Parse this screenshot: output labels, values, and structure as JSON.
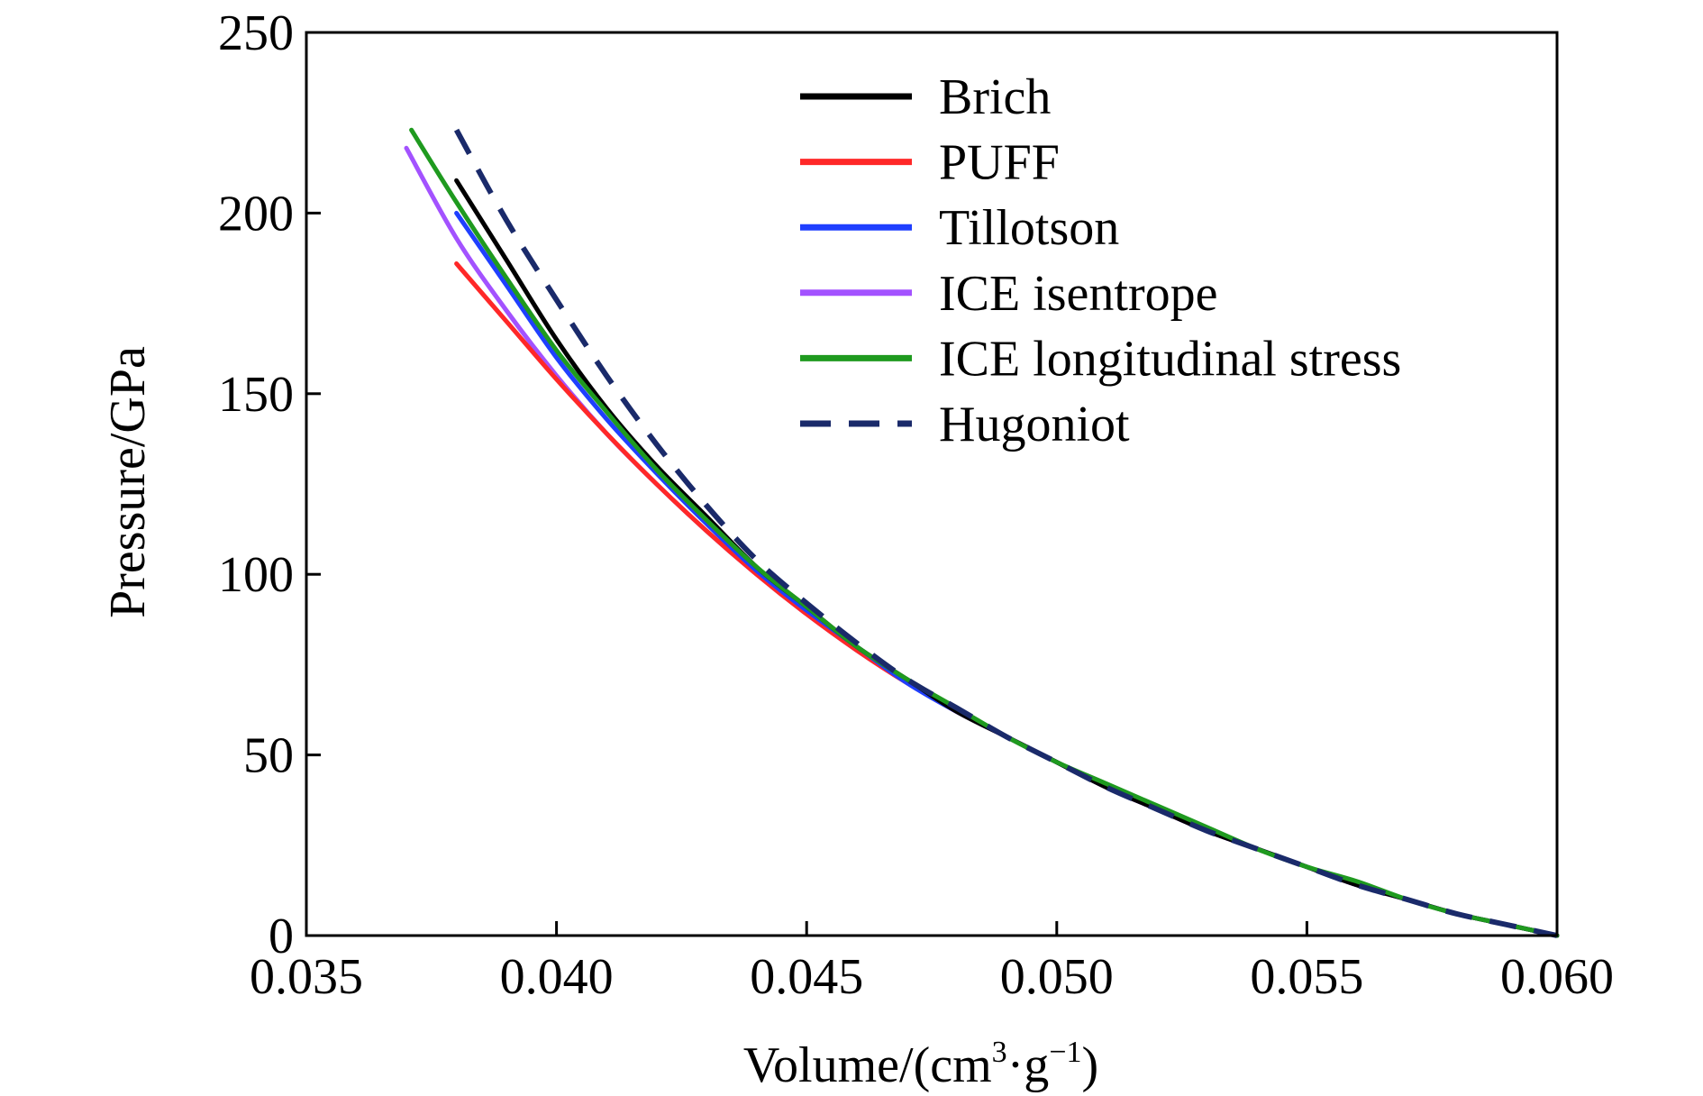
{
  "chart_data": {
    "type": "line",
    "xlabel": {
      "base": "Volume/(cm",
      "sup1": "3",
      "mid": "·g",
      "sup2": "−1",
      "end": ")"
    },
    "ylabel": "Pressure/GPa",
    "xlim": [
      0.035,
      0.06
    ],
    "ylim": [
      0,
      250
    ],
    "xticks": [
      0.035,
      0.04,
      0.045,
      0.05,
      0.055,
      0.06
    ],
    "xtick_labels": [
      "0.035",
      "0.040",
      "0.045",
      "0.050",
      "0.055",
      "0.060"
    ],
    "yticks": [
      0,
      50,
      100,
      150,
      200,
      250
    ],
    "ytick_labels": [
      "0",
      "50",
      "100",
      "150",
      "200",
      "250"
    ],
    "grid": false,
    "legend_position": "top-right",
    "series": [
      {
        "name": "Brich",
        "color": "#000000",
        "dashed": false,
        "x": [
          0.038,
          0.039,
          0.04,
          0.041,
          0.042,
          0.043,
          0.044,
          0.045,
          0.046,
          0.047,
          0.048,
          0.049,
          0.05,
          0.051,
          0.052,
          0.053,
          0.054,
          0.055,
          0.056,
          0.057,
          0.058,
          0.059,
          0.06
        ],
        "y": [
          209,
          187,
          165,
          146,
          130,
          116,
          102,
          91,
          80,
          71,
          62,
          55,
          48,
          41,
          35,
          29,
          24,
          19,
          14,
          10,
          6,
          3,
          0
        ]
      },
      {
        "name": "PUFF",
        "color": "#ff2828",
        "dashed": false,
        "x": [
          0.038,
          0.039,
          0.04,
          0.041,
          0.042,
          0.043,
          0.044,
          0.045,
          0.046,
          0.047,
          0.048,
          0.049,
          0.05,
          0.051,
          0.052,
          0.053,
          0.054,
          0.055,
          0.056,
          0.057,
          0.058,
          0.059,
          0.06
        ],
        "y": [
          186,
          170,
          154,
          139,
          125,
          112,
          100,
          89,
          79,
          70,
          62,
          55,
          48,
          41,
          35,
          29,
          24,
          19,
          14,
          10,
          6,
          3,
          0
        ]
      },
      {
        "name": "Tillotson",
        "color": "#1f3fff",
        "dashed": false,
        "x": [
          0.038,
          0.039,
          0.04,
          0.041,
          0.042,
          0.043,
          0.044,
          0.045,
          0.046,
          0.047,
          0.048,
          0.049,
          0.05,
          0.051,
          0.052,
          0.053,
          0.054,
          0.055,
          0.056,
          0.057,
          0.058,
          0.059,
          0.06
        ],
        "y": [
          200,
          180,
          160,
          143,
          128,
          114,
          101,
          90,
          80,
          70,
          62,
          55,
          48,
          41,
          35,
          29,
          24,
          19,
          14,
          10,
          6,
          3,
          0
        ]
      },
      {
        "name": "ICE isentrope",
        "color": "#a352ff",
        "dashed": false,
        "x": [
          0.037,
          0.038,
          0.039,
          0.04,
          0.041,
          0.042,
          0.043,
          0.044,
          0.045,
          0.046,
          0.047,
          0.048,
          0.049,
          0.05,
          0.051,
          0.052,
          0.053,
          0.054,
          0.055,
          0.056,
          0.057,
          0.058,
          0.059,
          0.06
        ],
        "y": [
          218,
          193,
          173,
          155,
          139,
          125,
          112,
          100,
          89,
          79,
          70,
          62,
          55,
          48,
          41,
          35,
          29,
          24,
          19,
          14,
          10,
          6,
          3,
          0
        ]
      },
      {
        "name": "ICE longitudinal stress",
        "color": "#1f9a1f",
        "dashed": false,
        "x": [
          0.0371,
          0.038,
          0.039,
          0.04,
          0.041,
          0.042,
          0.043,
          0.044,
          0.045,
          0.046,
          0.047,
          0.048,
          0.049,
          0.05,
          0.051,
          0.052,
          0.053,
          0.054,
          0.055,
          0.056,
          0.057,
          0.058,
          0.059,
          0.06
        ],
        "y": [
          223,
          203,
          182,
          162,
          145,
          129,
          115,
          102,
          91,
          80,
          71,
          63,
          55,
          48,
          42,
          36,
          30,
          24,
          19,
          15,
          10,
          6,
          3,
          0
        ]
      },
      {
        "name": "Hugoniot",
        "color": "#1a2a6a",
        "dashed": true,
        "x": [
          0.038,
          0.039,
          0.04,
          0.041,
          0.042,
          0.043,
          0.044,
          0.045,
          0.046,
          0.047,
          0.048,
          0.049,
          0.05,
          0.051,
          0.052,
          0.053,
          0.054,
          0.055,
          0.056,
          0.057,
          0.058,
          0.059,
          0.06
        ],
        "y": [
          223,
          198,
          176,
          155,
          136,
          119,
          104,
          92,
          81,
          71,
          63,
          55,
          48,
          41,
          35,
          29,
          24,
          19,
          14,
          10,
          6,
          3,
          0
        ]
      }
    ]
  }
}
